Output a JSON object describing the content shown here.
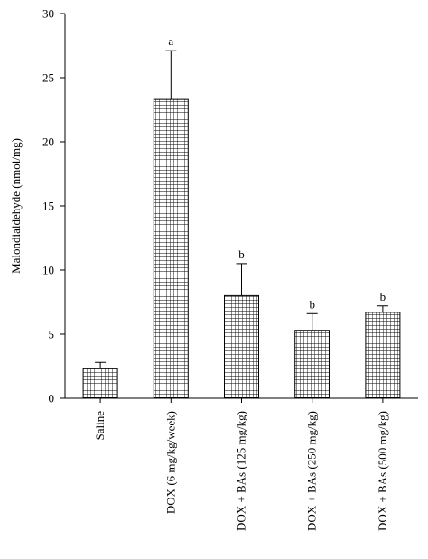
{
  "chart_data": {
    "type": "bar",
    "title": "",
    "xlabel": "",
    "ylabel": "Malondialdehyde (nmol/mg)",
    "ylim": [
      0,
      30
    ],
    "yticks": [
      0,
      5,
      10,
      15,
      20,
      25,
      30
    ],
    "grid": false,
    "legend": "none",
    "bar_pattern": "grid-hatch",
    "colors": {
      "bar_fill": "#ffffff",
      "bar_hatch": "#000000",
      "axis": "#000000"
    },
    "categories": [
      "Saline",
      "DOX (6 mg/kg/week)",
      "DOX + BAs (125 mg/kg)",
      "DOX + BAs (250 mg/kg)",
      "DOX + BAs (500 mg/kg)"
    ],
    "values": [
      2.3,
      23.3,
      8.0,
      5.3,
      6.7
    ],
    "errors": [
      0.5,
      3.8,
      2.5,
      1.3,
      0.5
    ],
    "significance": [
      "",
      "a",
      "b",
      "b",
      "b"
    ]
  }
}
